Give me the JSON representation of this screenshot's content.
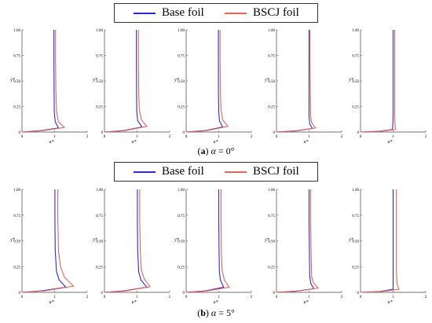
{
  "chart_data": [
    {
      "type": "line",
      "group": "a",
      "caption": {
        "letter": "a",
        "symbol": "α",
        "eq": " = ",
        "value": "0°"
      },
      "legend": [
        "Base foil",
        "BSCJ foil"
      ],
      "colors": {
        "base": "#2b2bd6",
        "bscj": "#e0645a"
      },
      "xlabel": "u*",
      "ylabel": "y*",
      "xlim": [
        0,
        2
      ],
      "ylim": [
        0,
        1.0
      ],
      "xticks": [
        "0",
        "1",
        "2"
      ],
      "yticks": [
        "0",
        "0.25",
        "0.50",
        "0.75",
        "1.00"
      ],
      "panels": [
        {
          "series": [
            {
              "name": "Base foil",
              "points": [
                [
                  0,
                  0
                ],
                [
                  0.6,
                  0.015
                ],
                [
                  1.12,
                  0.04
                ],
                [
                  1.02,
                  0.1
                ],
                [
                  0.99,
                  0.2
                ],
                [
                  0.985,
                  0.4
                ],
                [
                  0.98,
                  0.7
                ],
                [
                  0.98,
                  1.0
                ]
              ]
            },
            {
              "name": "BSCJ foil",
              "points": [
                [
                  0,
                  0
                ],
                [
                  0.6,
                  0.012
                ],
                [
                  1.3,
                  0.045
                ],
                [
                  1.12,
                  0.1
                ],
                [
                  1.06,
                  0.2
                ],
                [
                  1.04,
                  0.4
                ],
                [
                  1.03,
                  0.7
                ],
                [
                  1.03,
                  1.0
                ]
              ]
            }
          ]
        },
        {
          "series": [
            {
              "name": "Base foil",
              "points": [
                [
                  0,
                  0
                ],
                [
                  0.6,
                  0.015
                ],
                [
                  1.15,
                  0.05
                ],
                [
                  1.02,
                  0.11
                ],
                [
                  0.99,
                  0.2
                ],
                [
                  0.985,
                  0.4
                ],
                [
                  0.98,
                  0.7
                ],
                [
                  0.98,
                  1.0
                ]
              ]
            },
            {
              "name": "BSCJ foil",
              "points": [
                [
                  0,
                  0
                ],
                [
                  0.6,
                  0.012
                ],
                [
                  1.3,
                  0.055
                ],
                [
                  1.13,
                  0.12
                ],
                [
                  1.07,
                  0.22
                ],
                [
                  1.05,
                  0.4
                ],
                [
                  1.04,
                  0.7
                ],
                [
                  1.04,
                  1.0
                ]
              ]
            }
          ]
        },
        {
          "series": [
            {
              "name": "Base foil",
              "points": [
                [
                  0,
                  0
                ],
                [
                  0.6,
                  0.015
                ],
                [
                  1.12,
                  0.05
                ],
                [
                  1.02,
                  0.11
                ],
                [
                  1.0,
                  0.2
                ],
                [
                  0.99,
                  0.4
                ],
                [
                  0.99,
                  0.7
                ],
                [
                  0.99,
                  1.0
                ]
              ]
            },
            {
              "name": "BSCJ foil",
              "points": [
                [
                  0,
                  0
                ],
                [
                  0.6,
                  0.012
                ],
                [
                  1.28,
                  0.055
                ],
                [
                  1.12,
                  0.12
                ],
                [
                  1.07,
                  0.22
                ],
                [
                  1.05,
                  0.4
                ],
                [
                  1.04,
                  0.7
                ],
                [
                  1.04,
                  1.0
                ]
              ]
            }
          ]
        },
        {
          "series": [
            {
              "name": "Base foil",
              "points": [
                [
                  0,
                  0
                ],
                [
                  0.6,
                  0.012
                ],
                [
                  1.1,
                  0.035
                ],
                [
                  1.02,
                  0.08
                ],
                [
                  1.0,
                  0.15
                ],
                [
                  1.0,
                  0.4
                ],
                [
                  1.0,
                  0.7
                ],
                [
                  1.0,
                  1.0
                ]
              ]
            },
            {
              "name": "BSCJ foil",
              "points": [
                [
                  0,
                  0
                ],
                [
                  0.6,
                  0.01
                ],
                [
                  1.2,
                  0.04
                ],
                [
                  1.08,
                  0.09
                ],
                [
                  1.05,
                  0.15
                ],
                [
                  1.04,
                  0.4
                ],
                [
                  1.03,
                  0.7
                ],
                [
                  1.03,
                  1.0
                ]
              ]
            }
          ]
        },
        {
          "series": [
            {
              "name": "Base foil",
              "points": [
                [
                  0,
                  0
                ],
                [
                  0.6,
                  0.008
                ],
                [
                  0.98,
                  0.025
                ],
                [
                  0.99,
                  0.06
                ],
                [
                  1.0,
                  0.15
                ],
                [
                  1.0,
                  0.4
                ],
                [
                  1.0,
                  0.7
                ],
                [
                  1.0,
                  1.0
                ]
              ]
            },
            {
              "name": "BSCJ foil",
              "points": [
                [
                  0,
                  0
                ],
                [
                  0.6,
                  0.006
                ],
                [
                  1.08,
                  0.025
                ],
                [
                  1.06,
                  0.06
                ],
                [
                  1.05,
                  0.15
                ],
                [
                  1.05,
                  0.4
                ],
                [
                  1.05,
                  0.7
                ],
                [
                  1.05,
                  1.0
                ]
              ]
            }
          ]
        }
      ]
    },
    {
      "type": "line",
      "group": "b",
      "caption": {
        "letter": "b",
        "symbol": "α",
        "eq": " = ",
        "value": "5°"
      },
      "legend": [
        "Base foil",
        "BSCJ foil"
      ],
      "colors": {
        "base": "#2b2bd6",
        "bscj": "#e0645a"
      },
      "xlabel": "u*",
      "ylabel": "y*",
      "xlim": [
        0,
        2
      ],
      "ylim": [
        0,
        1.0
      ],
      "xticks": [
        "0",
        "1",
        "2"
      ],
      "yticks": [
        "0",
        "0.25",
        "0.50",
        "0.75",
        "1.00"
      ],
      "panels": [
        {
          "series": [
            {
              "name": "Base foil",
              "points": [
                [
                  0,
                  0
                ],
                [
                  0.6,
                  0.015
                ],
                [
                  1.35,
                  0.05
                ],
                [
                  1.14,
                  0.12
                ],
                [
                  1.06,
                  0.2
                ],
                [
                  1.02,
                  0.4
                ],
                [
                  1.01,
                  0.7
                ],
                [
                  1.01,
                  1.0
                ]
              ]
            },
            {
              "name": "BSCJ foil",
              "points": [
                [
                  0,
                  0
                ],
                [
                  0.7,
                  0.015
                ],
                [
                  1.58,
                  0.06
                ],
                [
                  1.3,
                  0.15
                ],
                [
                  1.18,
                  0.25
                ],
                [
                  1.12,
                  0.4
                ],
                [
                  1.1,
                  0.7
                ],
                [
                  1.1,
                  1.0
                ]
              ]
            }
          ]
        },
        {
          "series": [
            {
              "name": "Base foil",
              "points": [
                [
                  0,
                  0
                ],
                [
                  0.6,
                  0.015
                ],
                [
                  1.3,
                  0.05
                ],
                [
                  1.12,
                  0.12
                ],
                [
                  1.05,
                  0.2
                ],
                [
                  1.02,
                  0.4
                ],
                [
                  1.01,
                  0.7
                ],
                [
                  1.01,
                  1.0
                ]
              ]
            },
            {
              "name": "BSCJ foil",
              "points": [
                [
                  0,
                  0
                ],
                [
                  0.6,
                  0.012
                ],
                [
                  1.4,
                  0.055
                ],
                [
                  1.22,
                  0.13
                ],
                [
                  1.13,
                  0.22
                ],
                [
                  1.1,
                  0.4
                ],
                [
                  1.08,
                  0.7
                ],
                [
                  1.08,
                  1.0
                ]
              ]
            }
          ]
        },
        {
          "series": [
            {
              "name": "Base foil",
              "points": [
                [
                  0,
                  0
                ],
                [
                  0.6,
                  0.015
                ],
                [
                  1.15,
                  0.05
                ],
                [
                  1.05,
                  0.12
                ],
                [
                  1.02,
                  0.2
                ],
                [
                  1.01,
                  0.4
                ],
                [
                  1.0,
                  0.7
                ],
                [
                  1.0,
                  1.0
                ]
              ]
            },
            {
              "name": "BSCJ foil",
              "points": [
                [
                  0,
                  0
                ],
                [
                  0.6,
                  0.012
                ],
                [
                  1.32,
                  0.05
                ],
                [
                  1.17,
                  0.12
                ],
                [
                  1.1,
                  0.22
                ],
                [
                  1.08,
                  0.4
                ],
                [
                  1.07,
                  0.7
                ],
                [
                  1.07,
                  1.0
                ]
              ]
            }
          ]
        },
        {
          "series": [
            {
              "name": "Base foil",
              "points": [
                [
                  0,
                  0
                ],
                [
                  0.6,
                  0.012
                ],
                [
                  1.15,
                  0.035
                ],
                [
                  1.06,
                  0.08
                ],
                [
                  1.02,
                  0.15
                ],
                [
                  1.01,
                  0.4
                ],
                [
                  1.0,
                  0.7
                ],
                [
                  1.0,
                  1.0
                ]
              ]
            },
            {
              "name": "BSCJ foil",
              "points": [
                [
                  0,
                  0
                ],
                [
                  0.6,
                  0.01
                ],
                [
                  1.28,
                  0.04
                ],
                [
                  1.14,
                  0.09
                ],
                [
                  1.08,
                  0.15
                ],
                [
                  1.06,
                  0.4
                ],
                [
                  1.05,
                  0.7
                ],
                [
                  1.05,
                  1.0
                ]
              ]
            }
          ]
        },
        {
          "series": [
            {
              "name": "Base foil",
              "points": [
                [
                  0,
                  0
                ],
                [
                  0.6,
                  0.008
                ],
                [
                  1.0,
                  0.03
                ],
                [
                  1.0,
                  0.08
                ],
                [
                  1.0,
                  0.2
                ],
                [
                  1.0,
                  0.4
                ],
                [
                  1.0,
                  0.7
                ],
                [
                  1.0,
                  1.0
                ]
              ]
            },
            {
              "name": "BSCJ foil",
              "points": [
                [
                  0,
                  0
                ],
                [
                  0.6,
                  0.006
                ],
                [
                  1.18,
                  0.03
                ],
                [
                  1.12,
                  0.08
                ],
                [
                  1.1,
                  0.2
                ],
                [
                  1.1,
                  0.4
                ],
                [
                  1.1,
                  0.7
                ],
                [
                  1.1,
                  1.0
                ]
              ]
            }
          ]
        }
      ]
    }
  ]
}
